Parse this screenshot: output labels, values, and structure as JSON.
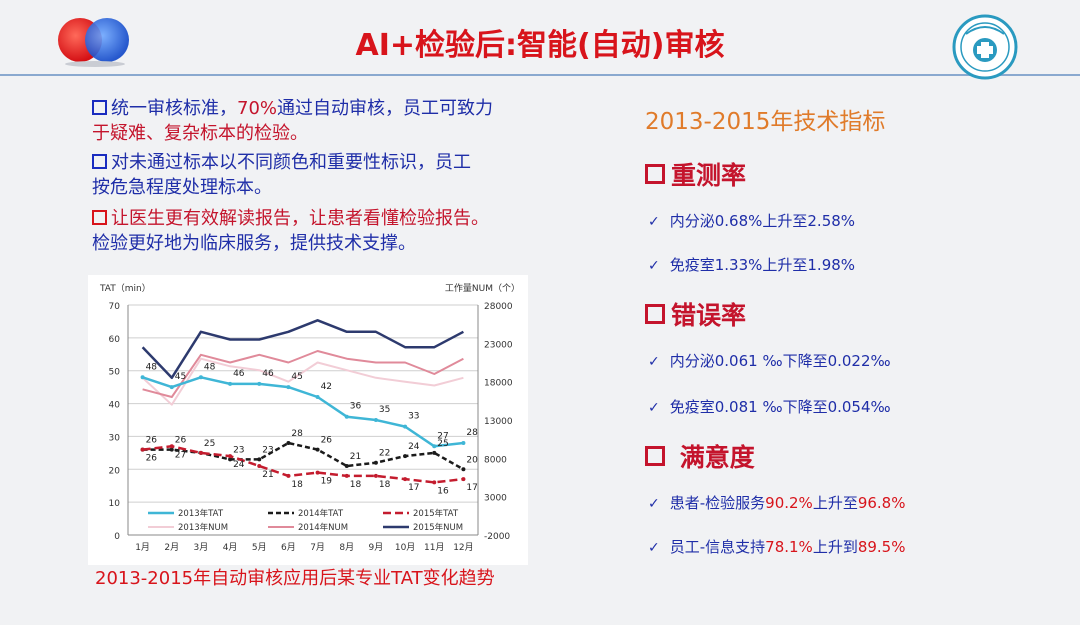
{
  "slide_title": "AI+检验后:智能(自动)审核",
  "bullets": [
    {
      "text": "统一审核标准，70%通过自动审核，员工可致力于疑难、复杂标本的检验。"
    },
    {
      "text": "对未通过标本以不同颜色和重要性标识，员工按危急程度处理标本。"
    },
    {
      "text": "让医生更有效解读报告，让患者看懂检验报告。检验更好地为临床服务，提供技术支撑。"
    }
  ],
  "bullet1": {
    "line1_a": "统一审核标准，",
    "line1_b": "70%",
    "line1_c": "通过自动审核，员工可致力",
    "line2": "于疑难、复杂标本的检验。"
  },
  "bullet2": {
    "line1": "对未通过标本以不同颜色和重要性标识，员工",
    "line2": "按危急程度处理标本。"
  },
  "bullet3": {
    "line1": "让医生更有效解读报告，让患者看懂检验报告。",
    "line2": "检验更好地为临床服务，提供技术支撑。"
  },
  "chart_caption": "2013-2015年自动审核应用后某专业TAT变化趋势",
  "right_panel": {
    "title": "2013-2015年技术指标",
    "sections": [
      {
        "heading": "重测率",
        "items": [
          {
            "a": "内分泌0.68%上升至2.58%",
            "b": "",
            "c": "",
            "d": ""
          },
          {
            "a": "免疫室1.33%上升至1.98%",
            "b": "",
            "c": "",
            "d": ""
          }
        ]
      },
      {
        "heading": "错误率",
        "items": [
          {
            "a": "内分泌0.061 ‰下降至0.022‰",
            "b": "",
            "c": "",
            "d": ""
          },
          {
            "a": "免疫室0.081 ‰下降至0.054‰",
            "b": "",
            "c": "",
            "d": ""
          }
        ]
      },
      {
        "heading": " 满意度",
        "items": [
          {
            "a": "患者-检验服务",
            "b": "90.2%",
            "c": "上升至",
            "d": "96.8%"
          },
          {
            "a": "员工-信息支持",
            "b": "78.1%",
            "c": "上升到",
            "d": "89.5%"
          }
        ]
      }
    ]
  },
  "colors": {
    "title_red": "#d8141b",
    "bullet_blue": "#1f2ea8",
    "accent_orange": "#e07b2a"
  },
  "chart_data": {
    "type": "line",
    "title": "",
    "ylabel": "TAT（min）",
    "y2label": "工作量NUM（个）",
    "categories": [
      "1月",
      "2月",
      "3月",
      "4月",
      "5月",
      "6月",
      "7月",
      "8月",
      "9月",
      "10月",
      "11月",
      "12月"
    ],
    "ylim": [
      0,
      70
    ],
    "yticks": [
      0,
      10,
      20,
      30,
      40,
      50,
      60,
      70
    ],
    "y2lim": [
      -2000,
      28000
    ],
    "y2ticks": [
      -2000,
      3000,
      8000,
      13000,
      18000,
      23000,
      28000
    ],
    "grid": true,
    "legend": "bottom-inside",
    "series": [
      {
        "name": "2013年TAT",
        "axis": "left",
        "color": "#3fb6d6",
        "dash": "",
        "width": 2.5,
        "values": [
          48,
          45,
          48,
          46,
          46,
          45,
          42,
          36,
          35,
          33,
          27,
          28
        ],
        "labels": [
          "48",
          "45",
          "48",
          "46",
          "46",
          "45",
          "42",
          "36",
          "35",
          "33",
          "27",
          "28"
        ]
      },
      {
        "name": "2014年TAT",
        "axis": "left",
        "color": "#1b1b1b",
        "dash": "5,3",
        "width": 2.5,
        "values": [
          26,
          26,
          25,
          23,
          23,
          28,
          26,
          21,
          22,
          24,
          25,
          20
        ],
        "labels": [
          "26",
          "26",
          "25",
          "23",
          "23",
          "28",
          "26",
          "21",
          "22",
          "24",
          "25",
          "20"
        ]
      },
      {
        "name": "2015年TAT",
        "axis": "left",
        "color": "#c41c2e",
        "dash": "8,4",
        "width": 2.5,
        "values": [
          26,
          27,
          25,
          24,
          21,
          18,
          19,
          18,
          18,
          17,
          16,
          17
        ],
        "labels": [
          "26",
          "27",
          "",
          "24",
          "21",
          "18",
          "19",
          "18",
          "18",
          "17",
          "16",
          "17"
        ]
      },
      {
        "name": "2013年NUM",
        "axis": "right",
        "color": "#f2cdd6",
        "dash": "",
        "width": 2,
        "values": [
          18500,
          15000,
          21000,
          20000,
          19500,
          18000,
          20500,
          19500,
          18500,
          18000,
          17500,
          18500
        ],
        "labels": []
      },
      {
        "name": "2014年NUM",
        "axis": "right",
        "color": "#e08a9a",
        "dash": "",
        "width": 2,
        "values": [
          17000,
          16000,
          21500,
          20500,
          21500,
          20500,
          22000,
          21000,
          20500,
          20500,
          19000,
          21000
        ],
        "labels": []
      },
      {
        "name": "2015年NUM",
        "axis": "right",
        "color": "#2d3a6e",
        "dash": "",
        "width": 2.5,
        "values": [
          22500,
          18500,
          24500,
          23500,
          23500,
          24500,
          26000,
          24500,
          24500,
          22500,
          22500,
          24500
        ],
        "labels": []
      }
    ]
  }
}
